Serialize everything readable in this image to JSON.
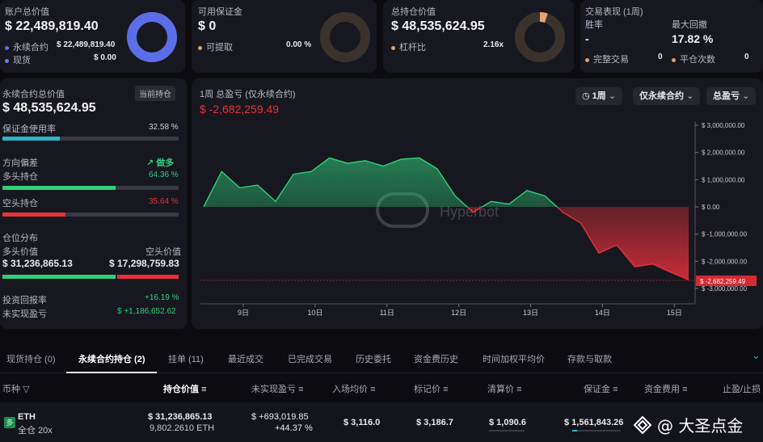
{
  "top": {
    "account": {
      "title": "账户总价值",
      "value": "$ 22,489,819.40",
      "row1_label": "永续合约",
      "row1_value": "$ 22,489,819.40",
      "row2_label": "现货",
      "row2_value": "$ 0.00",
      "dot1_color": "#5b6ee8",
      "dot2_color": "#6e7fe8"
    },
    "margin": {
      "title": "可用保证金",
      "value": "$ 0",
      "row_label": "可提取",
      "row_value": "0.00 %",
      "dot_color": "#e0a060"
    },
    "position": {
      "title": "总持仓价值",
      "value": "$ 48,535,624.95",
      "row_label": "杠杆比",
      "row_value": "2.16x",
      "dot_color": "#e0a060"
    },
    "perf": {
      "title": "交易表现 (1周)",
      "winrate_label": "胜率",
      "winrate_value": "-",
      "drawdown_label": "最大回撤",
      "drawdown_value": "17.82 %",
      "done_label": "完整交易",
      "done_value": "0",
      "close_label": "平仓次数",
      "close_value": "0",
      "dot_color": "#e0a060"
    }
  },
  "left": {
    "title": "永续合约总价值",
    "badge": "当前持仓",
    "value": "$ 48,535,624.95",
    "margin_label": "保证金使用率",
    "margin_value": "32.58 %",
    "margin_ratio": 0.3258,
    "direction_label": "方向偏差",
    "direction_value": "做多",
    "long_label": "多头持仓",
    "long_value": "64.36 %",
    "long_ratio": 0.6436,
    "short_label": "空头持仓",
    "short_value": "35.64 %",
    "short_ratio": 0.3564,
    "dist_label": "仓位分布",
    "long_value_label": "多头价值",
    "short_value_label": "空头价值",
    "long_amount": "$ 31,236,865.13",
    "short_amount": "$ 17,298,759.83",
    "roi_label": "投资回报率",
    "roi_value": "+16.19 %",
    "upnl_label": "未实现盈亏",
    "upnl_value": "$ +1,186,652.62",
    "colors": {
      "margin": "#2bb6c8",
      "long": "#2fd07a",
      "short": "#e8313a"
    }
  },
  "chart_panel": {
    "title": "1周 总盈亏 (仅永续合约)",
    "value": "$ -2,682,259.49",
    "period_label": "1周",
    "filter_label": "仅永续合约",
    "metric_label": "总盈亏",
    "watermark": "Hyperbot"
  },
  "chart_data": {
    "type": "area",
    "x": [
      "9日 00:00",
      "9日 06:00",
      "9日 12:00",
      "9日 18:00",
      "10日 00:00",
      "10日 06:00",
      "10日 12:00",
      "10日 18:00",
      "11日 00:00",
      "11日 06:00",
      "11日 12:00",
      "11日 18:00",
      "12日 00:00",
      "12日 06:00",
      "12日 12:00",
      "12日 18:00",
      "13日 00:00",
      "13日 06:00",
      "13日 12:00",
      "13日 18:00",
      "14日 00:00",
      "14日 06:00",
      "14日 12:00",
      "14日 18:00",
      "15日 00:00",
      "15日 06:00",
      "15日 12:00",
      "15日 18:00"
    ],
    "y": [
      0,
      1300000,
      700000,
      800000,
      200000,
      1200000,
      1300000,
      1800000,
      1600000,
      1700000,
      1500000,
      1750000,
      1800000,
      1400000,
      400000,
      -200000,
      200000,
      100000,
      600000,
      400000,
      -200000,
      -600000,
      -1700000,
      -1400000,
      -2200000,
      -2100000,
      -2400000,
      -2682259
    ],
    "xticks": [
      "9日",
      "10日",
      "11日",
      "12日",
      "13日",
      "14日",
      "15日"
    ],
    "yticks": [
      "$ 3,000,000.00",
      "$ 2,000,000.00",
      "$ 1,000,000.00",
      "$ 0.00",
      "$ -1,000,000.00",
      "$ -2,000,000.00",
      "$ -3,000,000.00"
    ],
    "ylim": [
      -3000000,
      3000000
    ],
    "last_label": "$ -2,682,259.49",
    "grid": false,
    "colors": {
      "positive": "#2fd07a",
      "negative": "#e8313a"
    }
  },
  "tabs": [
    {
      "label": "现货持仓 (0)"
    },
    {
      "label": "永续合约持仓 (2)"
    },
    {
      "label": "挂单 (11)"
    },
    {
      "label": "最近成交"
    },
    {
      "label": "已完成交易"
    },
    {
      "label": "历史委托"
    },
    {
      "label": "资金费历史"
    },
    {
      "label": "时间加权平均价"
    },
    {
      "label": "存款与取款"
    }
  ],
  "table": {
    "headers": [
      "币种",
      "持仓价值",
      "未实现盈亏",
      "入场均价",
      "标记价",
      "清算价",
      "保证金",
      "资金费用",
      "止盈/止损"
    ],
    "row": {
      "side_badge": "多",
      "coin": "ETH",
      "mode": "全仓 20x",
      "value": "$ 31,236,865.13",
      "size": "9,802.2610 ETH",
      "upnl": "$ +693,019.85",
      "upnl_pct": "+44.37 %",
      "entry": "$ 3,116.0",
      "mark": "$ 3,186.7",
      "liq": "$ 1,090.6",
      "margin": "$ 1,561,843.26"
    }
  },
  "watermark_brand": "@ 大圣点金"
}
